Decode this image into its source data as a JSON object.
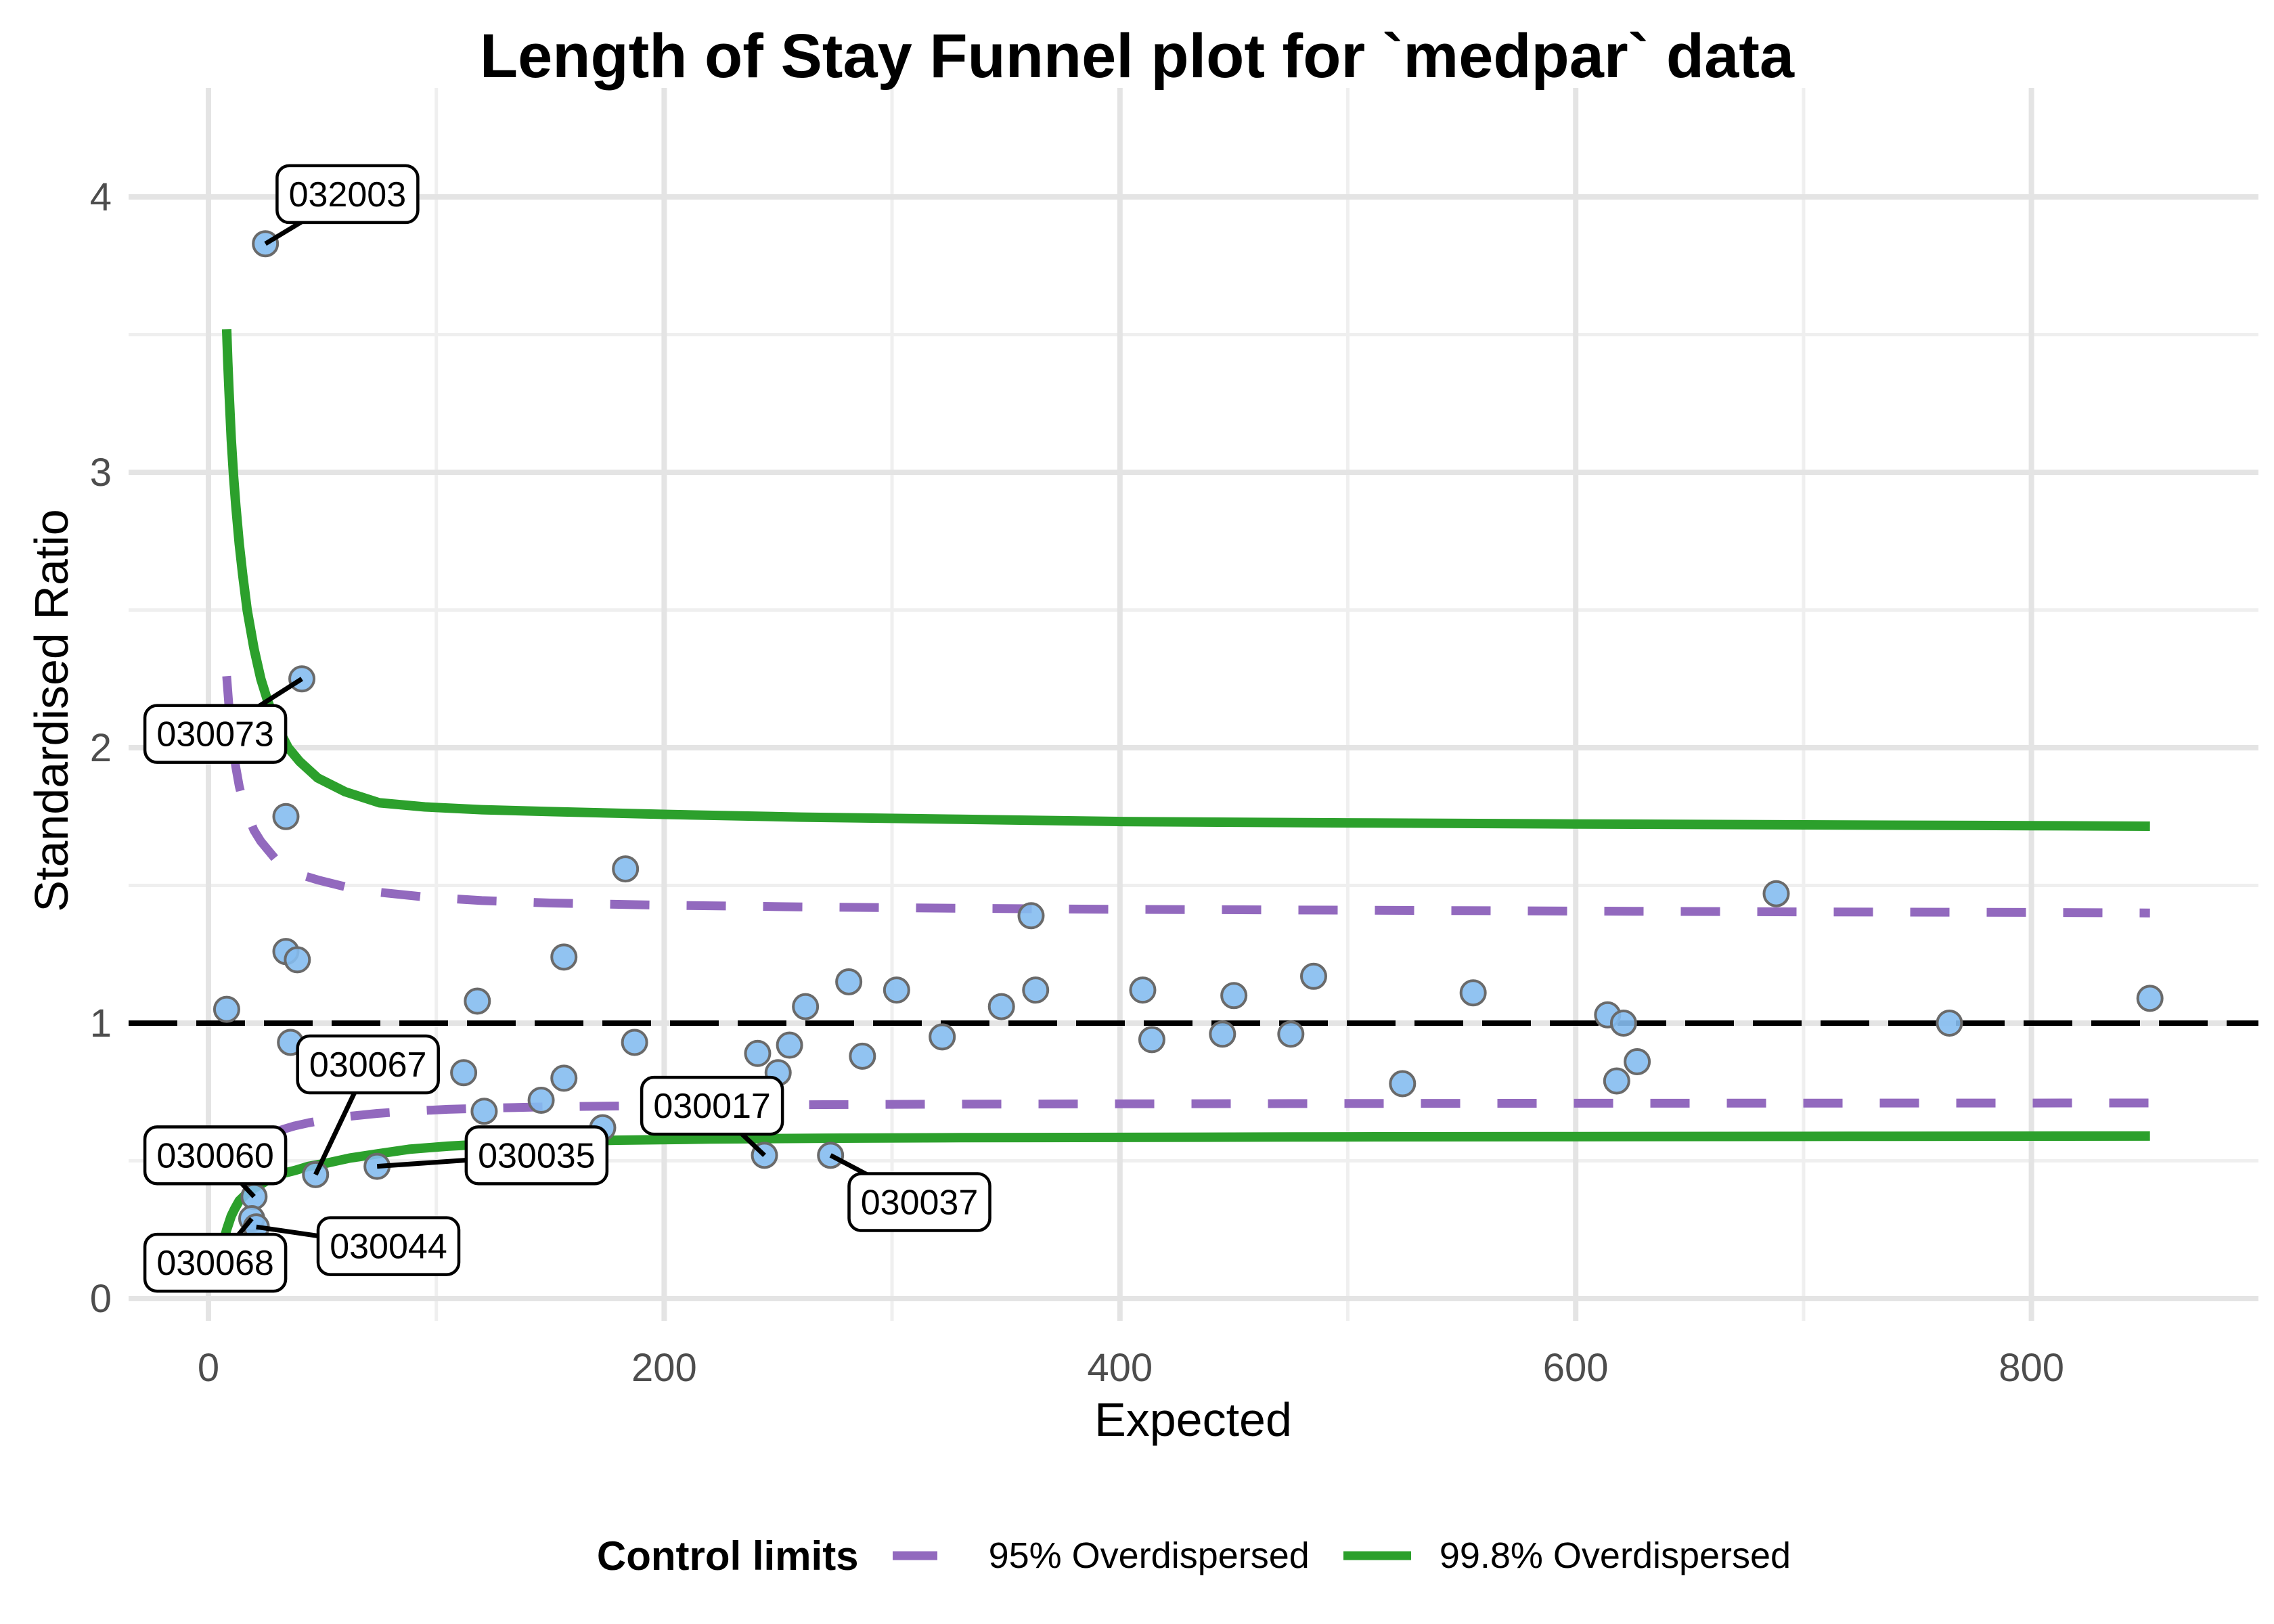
{
  "chart_data": {
    "type": "scatter",
    "title": "Length of Stay Funnel plot for `medpar` data",
    "xlabel": "Expected",
    "ylabel": "Standardised Ratio",
    "axes": {
      "x_major": [
        0,
        200,
        400,
        600,
        800
      ],
      "x_minor": [
        100,
        300,
        500,
        700
      ],
      "y_major": [
        0,
        1,
        2,
        3,
        4
      ],
      "y_minor": [
        0.5,
        1.5,
        2.5,
        3.5
      ],
      "xlim": [
        -35,
        900
      ],
      "ylim": [
        -0.08,
        4.42
      ],
      "grid": "on"
    },
    "center_line": {
      "y": 1,
      "style": "dashed",
      "color": "#000000"
    },
    "points": [
      [
        8,
        1.05
      ],
      [
        25,
        3.83
      ],
      [
        34,
        1.75
      ],
      [
        41,
        2.25
      ],
      [
        34,
        1.26
      ],
      [
        39,
        1.23
      ],
      [
        36,
        0.93
      ],
      [
        47,
        0.45
      ],
      [
        20,
        0.37
      ],
      [
        19,
        0.29
      ],
      [
        21,
        0.26
      ],
      [
        74,
        0.48
      ],
      [
        112,
        0.82
      ],
      [
        118,
        1.08
      ],
      [
        121,
        0.68
      ],
      [
        146,
        0.72
      ],
      [
        156,
        0.8
      ],
      [
        156,
        1.24
      ],
      [
        173,
        0.62
      ],
      [
        183,
        1.56
      ],
      [
        187,
        0.93
      ],
      [
        241,
        0.89
      ],
      [
        244,
        0.52
      ],
      [
        250,
        0.82
      ],
      [
        255,
        0.92
      ],
      [
        262,
        1.06
      ],
      [
        273,
        0.52
      ],
      [
        281,
        1.15
      ],
      [
        287,
        0.88
      ],
      [
        302,
        1.12
      ],
      [
        322,
        0.95
      ],
      [
        348,
        1.06
      ],
      [
        361,
        1.39
      ],
      [
        363,
        1.12
      ],
      [
        410,
        1.12
      ],
      [
        414,
        0.94
      ],
      [
        445,
        0.96
      ],
      [
        450,
        1.1
      ],
      [
        475,
        0.96
      ],
      [
        485,
        1.17
      ],
      [
        524,
        0.78
      ],
      [
        555,
        1.11
      ],
      [
        614,
        1.03
      ],
      [
        618,
        0.79
      ],
      [
        621,
        1.0
      ],
      [
        627,
        0.86
      ],
      [
        688,
        1.47
      ],
      [
        764,
        1.0
      ],
      [
        852,
        1.09
      ]
    ],
    "point_labels": [
      {
        "text": "032003",
        "point": [
          25,
          3.83
        ],
        "box": [
          61,
          4.01
        ]
      },
      {
        "text": "030073",
        "point": [
          41,
          2.25
        ],
        "box": [
          3,
          2.05
        ]
      },
      {
        "text": "030067",
        "point": [
          47,
          0.45
        ],
        "box": [
          70,
          0.85
        ]
      },
      {
        "text": "030060",
        "point": [
          20,
          0.37
        ],
        "box": [
          3,
          0.52
        ]
      },
      {
        "text": "030068",
        "point": [
          19,
          0.29
        ],
        "box": [
          3,
          0.13
        ]
      },
      {
        "text": "030044",
        "point": [
          21,
          0.26
        ],
        "box": [
          79,
          0.19
        ]
      },
      {
        "text": "030035",
        "point": [
          74,
          0.48
        ],
        "box": [
          144,
          0.52
        ]
      },
      {
        "text": "030017",
        "point": [
          244,
          0.52
        ],
        "box": [
          221,
          0.7
        ]
      },
      {
        "text": "030037",
        "point": [
          273,
          0.52
        ],
        "box": [
          312,
          0.35
        ]
      }
    ],
    "control_limits": [
      {
        "name": "95% Overdispersed",
        "style": "dashed",
        "color": "#9269BE",
        "upper": [
          [
            8,
            2.26
          ],
          [
            9,
            2.15
          ],
          [
            10,
            2.06
          ],
          [
            11,
            1.99
          ],
          [
            12,
            1.93
          ],
          [
            13.5,
            1.86
          ],
          [
            15,
            1.81
          ],
          [
            17,
            1.76
          ],
          [
            20,
            1.7
          ],
          [
            23,
            1.66
          ],
          [
            26,
            1.63
          ],
          [
            30,
            1.59
          ],
          [
            35,
            1.56
          ],
          [
            40,
            1.54
          ],
          [
            48,
            1.52
          ],
          [
            60,
            1.495
          ],
          [
            75,
            1.475
          ],
          [
            95,
            1.458
          ],
          [
            120,
            1.445
          ],
          [
            150,
            1.436
          ],
          [
            200,
            1.428
          ],
          [
            260,
            1.422
          ],
          [
            330,
            1.417
          ],
          [
            400,
            1.413
          ],
          [
            500,
            1.41
          ],
          [
            600,
            1.407
          ],
          [
            700,
            1.404
          ],
          [
            800,
            1.402
          ],
          [
            852,
            1.4
          ]
        ],
        "lower": [
          [
            6.5,
            0.42
          ],
          [
            7,
            0.435
          ],
          [
            8,
            0.455
          ],
          [
            9,
            0.47
          ],
          [
            10,
            0.485
          ],
          [
            11.5,
            0.505
          ],
          [
            13.5,
            0.525
          ],
          [
            16,
            0.545
          ],
          [
            18,
            0.556
          ],
          [
            21,
            0.572
          ],
          [
            24,
            0.585
          ],
          [
            28,
            0.6
          ],
          [
            33,
            0.615
          ],
          [
            38,
            0.627
          ],
          [
            44,
            0.638
          ],
          [
            52,
            0.65
          ],
          [
            62,
            0.662
          ],
          [
            74,
            0.672
          ],
          [
            88,
            0.68
          ],
          [
            105,
            0.687
          ],
          [
            125,
            0.692
          ],
          [
            150,
            0.696
          ],
          [
            180,
            0.699
          ],
          [
            220,
            0.702
          ],
          [
            270,
            0.704
          ],
          [
            330,
            0.706
          ],
          [
            400,
            0.707
          ],
          [
            500,
            0.708
          ],
          [
            600,
            0.709
          ],
          [
            720,
            0.7095
          ],
          [
            852,
            0.71
          ]
        ]
      },
      {
        "name": "99.8% Overdispersed",
        "style": "solid",
        "color": "#2CA02C",
        "upper": [
          [
            8,
            3.52
          ],
          [
            8.5,
            3.4
          ],
          [
            9,
            3.3
          ],
          [
            10,
            3.12
          ],
          [
            11,
            2.99
          ],
          [
            12,
            2.88
          ],
          [
            13.5,
            2.74
          ],
          [
            15,
            2.63
          ],
          [
            17,
            2.5
          ],
          [
            20,
            2.36
          ],
          [
            23,
            2.25
          ],
          [
            26,
            2.17
          ],
          [
            30,
            2.08
          ],
          [
            35,
            2.0
          ],
          [
            40,
            1.95
          ],
          [
            48,
            1.89
          ],
          [
            60,
            1.84
          ],
          [
            75,
            1.8
          ],
          [
            95,
            1.785
          ],
          [
            120,
            1.775
          ],
          [
            150,
            1.768
          ],
          [
            200,
            1.758
          ],
          [
            260,
            1.748
          ],
          [
            330,
            1.74
          ],
          [
            400,
            1.732
          ],
          [
            500,
            1.727
          ],
          [
            600,
            1.723
          ],
          [
            700,
            1.72
          ],
          [
            800,
            1.717
          ],
          [
            852,
            1.715
          ]
        ],
        "lower": [
          [
            6.5,
            0.19
          ],
          [
            7,
            0.22
          ],
          [
            8,
            0.25
          ],
          [
            9,
            0.275
          ],
          [
            10,
            0.3
          ],
          [
            11.5,
            0.325
          ],
          [
            13.5,
            0.355
          ],
          [
            16,
            0.375
          ],
          [
            18,
            0.39
          ],
          [
            21,
            0.405
          ],
          [
            24,
            0.42
          ],
          [
            28,
            0.44
          ],
          [
            33,
            0.455
          ],
          [
            38,
            0.465
          ],
          [
            44,
            0.48
          ],
          [
            52,
            0.492
          ],
          [
            62,
            0.51
          ],
          [
            74,
            0.525
          ],
          [
            88,
            0.542
          ],
          [
            105,
            0.553
          ],
          [
            125,
            0.562
          ],
          [
            150,
            0.57
          ],
          [
            180,
            0.575
          ],
          [
            220,
            0.579
          ],
          [
            270,
            0.582
          ],
          [
            330,
            0.584
          ],
          [
            400,
            0.585
          ],
          [
            500,
            0.587
          ],
          [
            600,
            0.588
          ],
          [
            720,
            0.589
          ],
          [
            852,
            0.59
          ]
        ]
      }
    ],
    "legend": {
      "title": "Control limits",
      "position": "bottom"
    },
    "colors": {
      "point_fill": "#85BCF0",
      "point_stroke": "#6A6A6A",
      "grid_major": "#E4E4E4",
      "grid_minor": "#EFEFEF",
      "tick_text": "#4D4D4D",
      "label_box_fill": "#FFFFFF",
      "label_box_border": "#000000",
      "center_line": "#000000"
    }
  }
}
